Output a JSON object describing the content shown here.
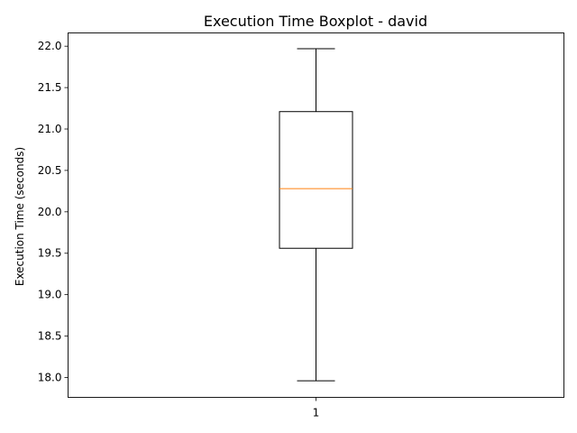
{
  "chart_data": {
    "type": "boxplot",
    "title": "Execution Time Boxplot - david",
    "xlabel": "",
    "ylabel": "Execution Time (seconds)",
    "categories": [
      "1"
    ],
    "ylim": [
      17.76,
      22.16
    ],
    "yticks": [
      "18.0",
      "18.5",
      "19.0",
      "19.5",
      "20.0",
      "20.5",
      "21.0",
      "21.5",
      "22.0"
    ],
    "grid": false,
    "boxes": [
      {
        "category": "1",
        "whisker_low": 17.96,
        "q1": 19.56,
        "median": 20.28,
        "q3": 21.21,
        "whisker_high": 21.97
      }
    ],
    "colors": {
      "box": "#000000",
      "median": "#ff7f0e"
    }
  }
}
